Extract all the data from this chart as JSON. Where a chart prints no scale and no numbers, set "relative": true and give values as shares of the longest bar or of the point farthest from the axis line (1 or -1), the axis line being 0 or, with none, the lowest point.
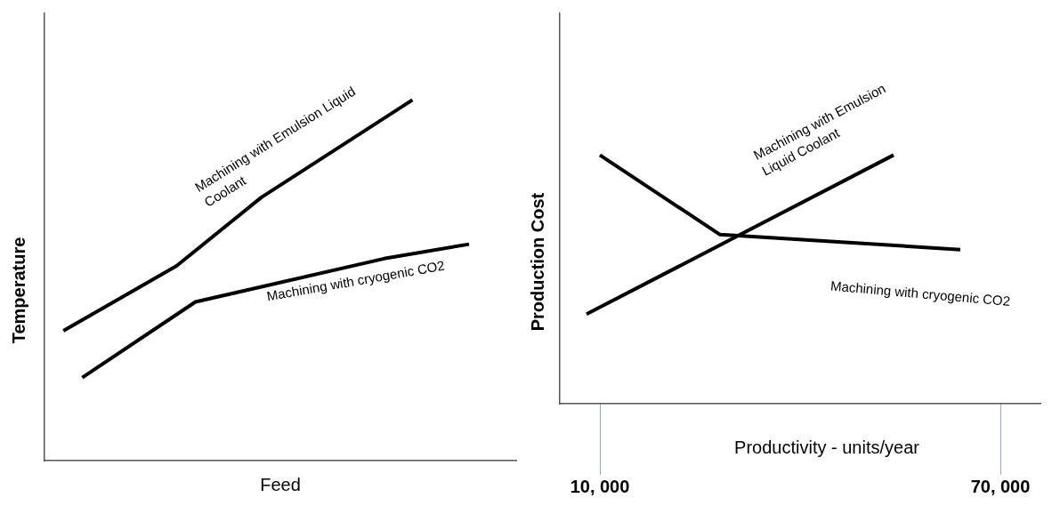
{
  "chart_data": [
    {
      "type": "line",
      "relative": true,
      "xlabel": "Feed",
      "ylabel": "Temperature",
      "categories": [
        null,
        null,
        null,
        null,
        null,
        null,
        null,
        null,
        null,
        null,
        null,
        null,
        null,
        null,
        null,
        null,
        null,
        null,
        null,
        null,
        null,
        null,
        null,
        null,
        null,
        null,
        null,
        null,
        null,
        null,
        null,
        null,
        null,
        null,
        null,
        null,
        null,
        null,
        null,
        null,
        null,
        null,
        null,
        null,
        null,
        null,
        null,
        null,
        null,
        null,
        null
      ],
      "tick_labels": false,
      "grid": false,
      "legend": false,
      "marker": "none",
      "line_style": "solid",
      "series": [
        {
          "name": "Machining with Emulsion Liquid Coolant",
          "color": "#000000",
          "values": [
            null,
            null,
            0.36,
            null,
            null,
            null,
            null,
            null,
            null,
            null,
            null,
            null,
            null,
            null,
            0.54,
            null,
            null,
            null,
            null,
            null,
            null,
            null,
            null,
            0.73,
            null,
            null,
            null,
            null,
            null,
            null,
            null,
            null,
            null,
            null,
            null,
            null,
            null,
            null,
            null,
            1,
            null,
            null,
            null,
            null,
            null,
            null,
            null,
            null,
            null,
            null,
            null
          ]
        },
        {
          "name": "Machining with cryogenic CO2",
          "color": "#000000",
          "values": [
            null,
            null,
            null,
            null,
            0.23,
            null,
            null,
            null,
            null,
            null,
            null,
            null,
            null,
            null,
            null,
            null,
            0.44,
            null,
            null,
            null,
            null,
            null,
            null,
            null,
            null,
            null,
            null,
            null,
            null,
            null,
            null,
            null,
            null,
            null,
            null,
            null,
            0.56,
            null,
            null,
            null,
            null,
            null,
            null,
            null,
            null,
            0.6,
            null,
            null,
            null,
            null,
            null
          ]
        }
      ]
    },
    {
      "type": "line",
      "relative": true,
      "xlabel": "Productivity - units/year",
      "ylabel": "Production Cost",
      "categories": [
        null,
        null,
        null,
        "10, 000",
        null,
        null,
        null,
        null,
        null,
        null,
        null,
        null,
        null,
        null,
        null,
        null,
        null,
        null,
        null,
        null,
        null,
        null,
        null,
        null,
        null,
        null,
        null,
        null,
        null,
        null,
        null,
        null,
        null,
        "70, 000",
        null,
        null,
        null
      ],
      "tick_labels": "x",
      "grid": false,
      "legend": false,
      "marker": "none",
      "line_style": "solid",
      "series": [
        {
          "name": "Machining with Emulsion Liquid Coolant",
          "color": "#000000",
          "values": [
            null,
            null,
            0.36,
            null,
            null,
            null,
            null,
            null,
            null,
            null,
            null,
            null,
            null,
            null,
            null,
            null,
            null,
            null,
            null,
            null,
            null,
            null,
            null,
            null,
            null,
            1,
            null,
            null,
            null,
            null,
            null,
            null,
            null,
            null,
            null,
            null,
            null
          ]
        },
        {
          "name": "Machining with cryogenic CO2",
          "color": "#000000",
          "values": [
            null,
            null,
            null,
            1,
            null,
            null,
            null,
            null,
            null,
            null,
            null,
            null,
            0.68,
            null,
            null,
            null,
            null,
            null,
            null,
            null,
            null,
            null,
            null,
            null,
            null,
            null,
            null,
            null,
            null,
            null,
            0.62,
            null,
            null,
            null,
            null,
            null,
            null
          ]
        }
      ]
    }
  ]
}
